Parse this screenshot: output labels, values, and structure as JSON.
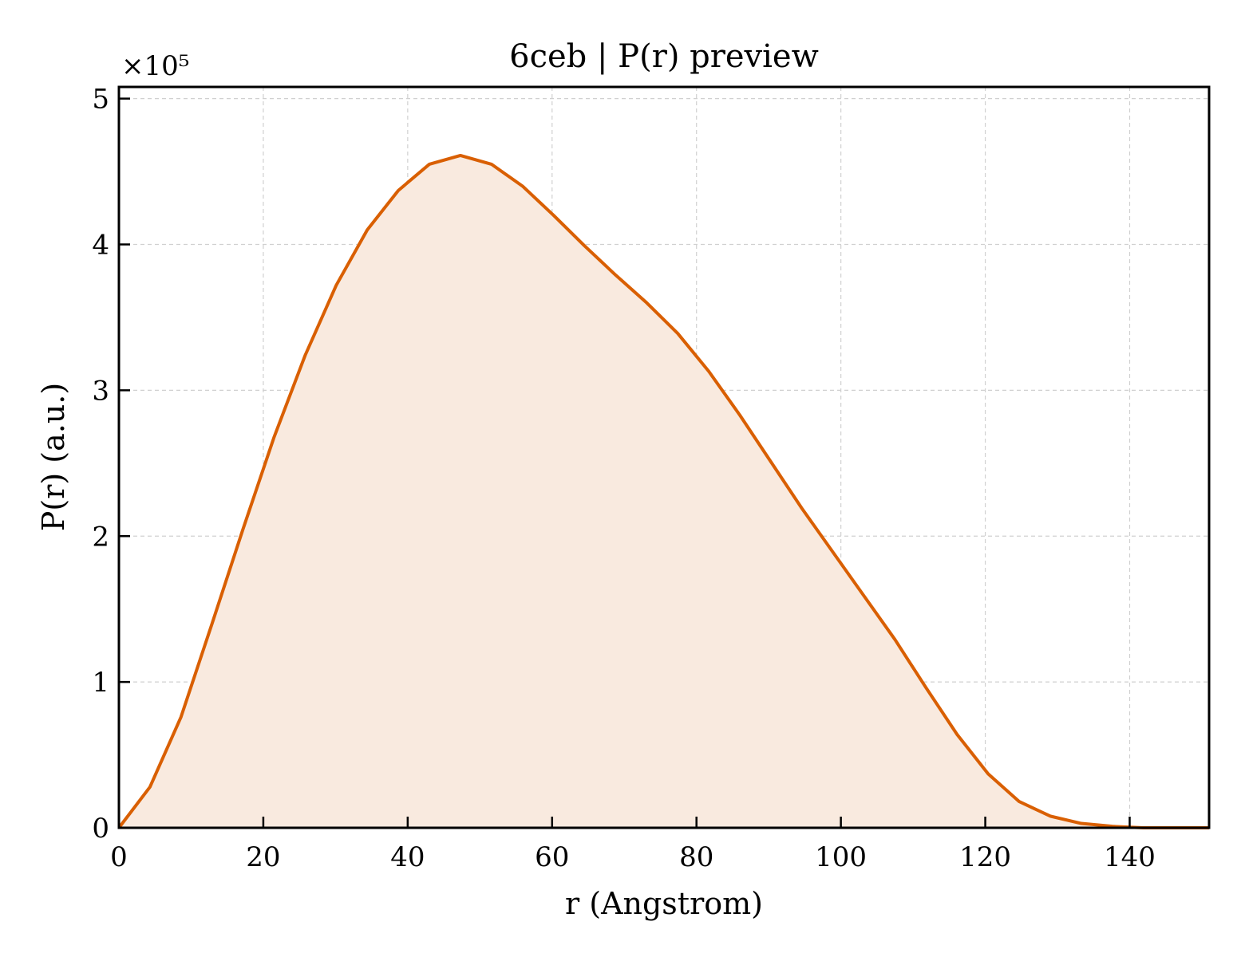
{
  "chart_data": {
    "type": "area",
    "title": "6ceb | P(r) preview",
    "xlabel": "r (Angstrom)",
    "ylabel": "P(r) (a.u.)",
    "y_multiplier_label": "×10⁵",
    "y_scale": 100000,
    "xlim": [
      0,
      151
    ],
    "ylim": [
      0,
      5.08
    ],
    "x_ticks": [
      0,
      20,
      40,
      60,
      80,
      100,
      120,
      140
    ],
    "x_tick_labels": [
      "0",
      "20",
      "40",
      "60",
      "80",
      "100",
      "120",
      "140"
    ],
    "y_ticks": [
      0,
      1,
      2,
      3,
      4,
      5
    ],
    "y_tick_labels": [
      "0",
      "1",
      "2",
      "3",
      "4",
      "5"
    ],
    "grid": true,
    "line_color": "#d95f02",
    "fill_color": "#f9eadf",
    "series": [
      {
        "x": [
          0,
          4.3,
          8.6,
          12.9,
          17.2,
          21.5,
          25.8,
          30.1,
          34.4,
          38.7,
          43.0,
          47.3,
          51.6,
          55.9,
          60.2,
          64.5,
          68.8,
          73.1,
          77.4,
          81.7,
          86.0,
          90.3,
          94.6,
          98.9,
          103.2,
          107.5,
          111.8,
          116.1,
          120.4,
          124.7,
          129.0,
          133.3,
          137.6,
          141.9,
          146.2,
          151.0
        ],
        "y": [
          0.0,
          0.28,
          0.76,
          1.4,
          2.05,
          2.68,
          3.24,
          3.72,
          4.1,
          4.37,
          4.55,
          4.61,
          4.55,
          4.4,
          4.2,
          3.99,
          3.79,
          3.6,
          3.39,
          3.13,
          2.83,
          2.51,
          2.19,
          1.89,
          1.59,
          1.29,
          0.96,
          0.64,
          0.37,
          0.18,
          0.08,
          0.03,
          0.01,
          0.0,
          0.0,
          0.0
        ]
      }
    ]
  }
}
